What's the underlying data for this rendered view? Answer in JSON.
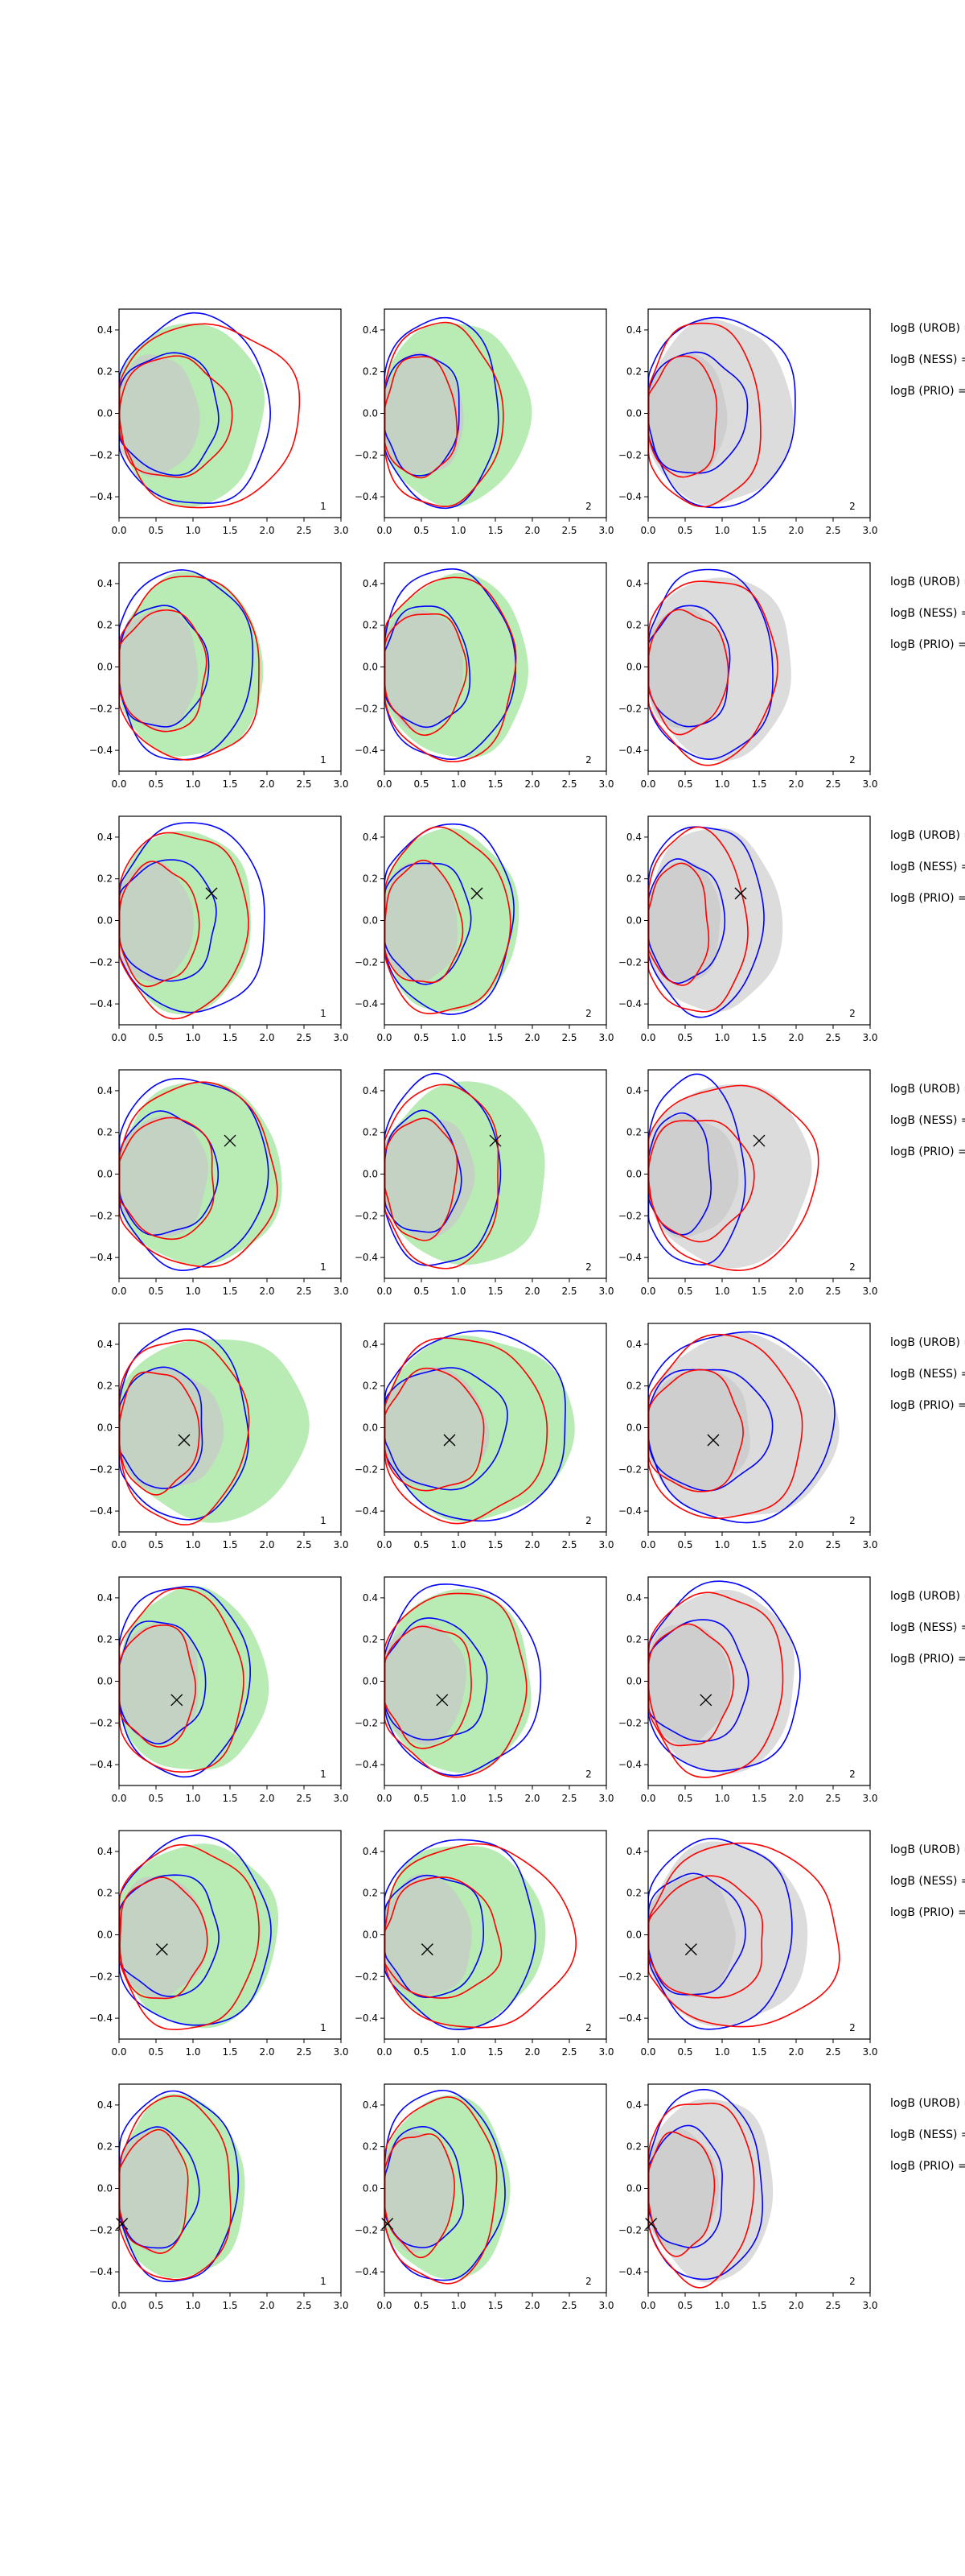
{
  "figure": {
    "legend_labels": [
      "logB (UROB) =",
      "logB (NESS) =",
      "logB (PRIO) ="
    ],
    "x_ticks": [
      "0.0",
      "0.5",
      "1.0",
      "1.5",
      "2.0",
      "2.5",
      "3.0"
    ],
    "y_ticks": [
      "0.4",
      "0.2",
      "0.0",
      "−0.2",
      "−0.4"
    ]
  },
  "colors": {
    "fill_green": "#b9ebb5",
    "fill_grey": "#dcdcdc",
    "inner_fill": "#c8c8c8",
    "blue": "#0000ff",
    "red": "#ff0000",
    "axis": "#000000"
  },
  "chart_data": {
    "type": "contour",
    "xlim": [
      0,
      3
    ],
    "ylim": [
      -0.5,
      0.5
    ],
    "x_ticks": [
      0,
      0.5,
      1,
      1.5,
      2,
      2.5,
      3
    ],
    "y_ticks": [
      0.4,
      0.2,
      0,
      -0.2,
      -0.4
    ],
    "column_labels": [
      "1",
      "2",
      "2"
    ],
    "rows": [
      {
        "marker": null,
        "blue_extent": [
          2.05,
          1.55,
          2.0
        ],
        "red_extent": [
          2.45,
          1.6,
          1.55
        ],
        "grey_extent": 1.95
      },
      {
        "marker": null,
        "blue_extent": [
          1.8,
          1.75,
          1.7
        ],
        "red_extent": [
          1.95,
          1.8,
          1.75
        ],
        "grey_extent": 1.95
      },
      {
        "marker": [
          1.25,
          0.13
        ],
        "blue_extent": [
          2.0,
          1.75,
          1.55
        ],
        "red_extent": [
          1.75,
          1.7,
          1.35
        ],
        "grey_extent": 1.8
      },
      {
        "marker": [
          1.5,
          0.16
        ],
        "blue_extent": [
          2.0,
          1.55,
          1.3
        ],
        "red_extent": [
          2.15,
          1.6,
          2.3
        ],
        "grey_extent": 2.2
      },
      {
        "marker": [
          0.88,
          -0.06
        ],
        "blue_extent": [
          1.75,
          2.5,
          2.5
        ],
        "red_extent": [
          1.75,
          2.2,
          2.1
        ],
        "grey_extent": 2.55
      },
      {
        "marker": [
          0.78,
          -0.09
        ],
        "blue_extent": [
          1.75,
          2.1,
          2.05
        ],
        "red_extent": [
          1.7,
          1.95,
          1.85
        ],
        "grey_extent": 2.0
      },
      {
        "marker": [
          0.58,
          -0.07
        ],
        "blue_extent": [
          2.05,
          2.05,
          1.95
        ],
        "red_extent": [
          1.9,
          2.55,
          2.6
        ],
        "grey_extent": 2.15
      },
      {
        "marker": [
          0.04,
          -0.17
        ],
        "blue_extent": [
          1.6,
          1.6,
          1.55
        ],
        "red_extent": [
          1.55,
          1.55,
          1.45
        ],
        "grey_extent": 1.7
      }
    ]
  }
}
